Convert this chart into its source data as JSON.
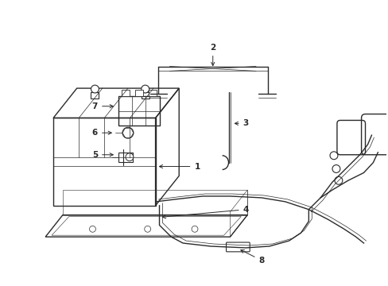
{
  "background_color": "#ffffff",
  "line_color": "#2a2a2a",
  "figsize": [
    4.89,
    3.6
  ],
  "dpi": 100,
  "label_fontsize": 7.5
}
